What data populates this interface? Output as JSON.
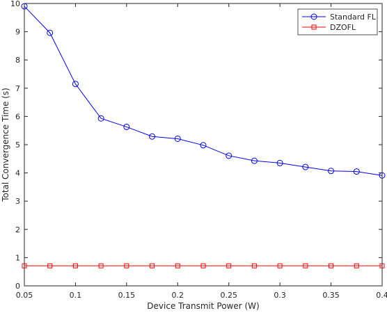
{
  "chart_data": {
    "type": "line",
    "title": "",
    "xlabel": "Device Transmit Power (W)",
    "ylabel": "Total Convergence Time (s)",
    "xlim": [
      0.05,
      0.4
    ],
    "ylim": [
      0,
      10
    ],
    "x_ticks": [
      "0.05",
      "0.1",
      "0.15",
      "0.2",
      "0.25",
      "0.3",
      "0.35",
      "0.4"
    ],
    "y_ticks": [
      "0",
      "1",
      "2",
      "3",
      "4",
      "5",
      "6",
      "7",
      "8",
      "9",
      "10"
    ],
    "grid": false,
    "legend_position": "top-right",
    "x": [
      0.05,
      0.075,
      0.1,
      0.125,
      0.15,
      0.175,
      0.2,
      0.225,
      0.25,
      0.275,
      0.3,
      0.325,
      0.35,
      0.375,
      0.4
    ],
    "series": [
      {
        "name": "Standard FL",
        "color": "#0000ff",
        "marker": "circle",
        "values": [
          9.9,
          8.96,
          7.15,
          5.93,
          5.63,
          5.29,
          5.21,
          4.98,
          4.61,
          4.43,
          4.35,
          4.21,
          4.07,
          4.05,
          3.91
        ]
      },
      {
        "name": "DZOFL",
        "color": "#ff0000",
        "marker": "square",
        "values": [
          0.71,
          0.71,
          0.71,
          0.71,
          0.71,
          0.71,
          0.71,
          0.71,
          0.71,
          0.71,
          0.71,
          0.71,
          0.71,
          0.71,
          0.71
        ]
      }
    ]
  }
}
